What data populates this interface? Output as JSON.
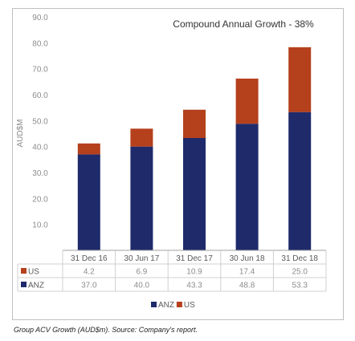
{
  "caption": "Group ACV Growth (AUD$m). Source: Company's report.",
  "chart_data": {
    "type": "bar",
    "stacked": true,
    "title": "Compound Annual Growth - 38%",
    "ylabel": "AUD$M",
    "xlabel": "",
    "ylim": [
      0,
      90
    ],
    "yticks": [
      "0.0",
      "10.0",
      "20.0",
      "30.0",
      "40.0",
      "50.0",
      "60.0",
      "70.0",
      "80.0",
      "90.0"
    ],
    "categories": [
      "31 Dec 16",
      "30 Jun 17",
      "31 Dec 17",
      "30 Jun 18",
      "31 Dec 18"
    ],
    "series": [
      {
        "name": "ANZ",
        "color": "#1f2a6b",
        "values": [
          37.0,
          40.0,
          43.3,
          48.8,
          53.3
        ],
        "labels": [
          "37.0",
          "40.0",
          "43.3",
          "48.8",
          "53.3"
        ]
      },
      {
        "name": "US",
        "color": "#b5401c",
        "values": [
          4.2,
          6.9,
          10.9,
          17.4,
          25.0
        ],
        "labels": [
          "4.2",
          "6.9",
          "10.9",
          "17.4",
          "25.0"
        ]
      }
    ],
    "table_rows": [
      "US",
      "ANZ"
    ],
    "grid": false,
    "legend": "bottom-center",
    "legend_items": [
      "ANZ",
      "US"
    ]
  }
}
